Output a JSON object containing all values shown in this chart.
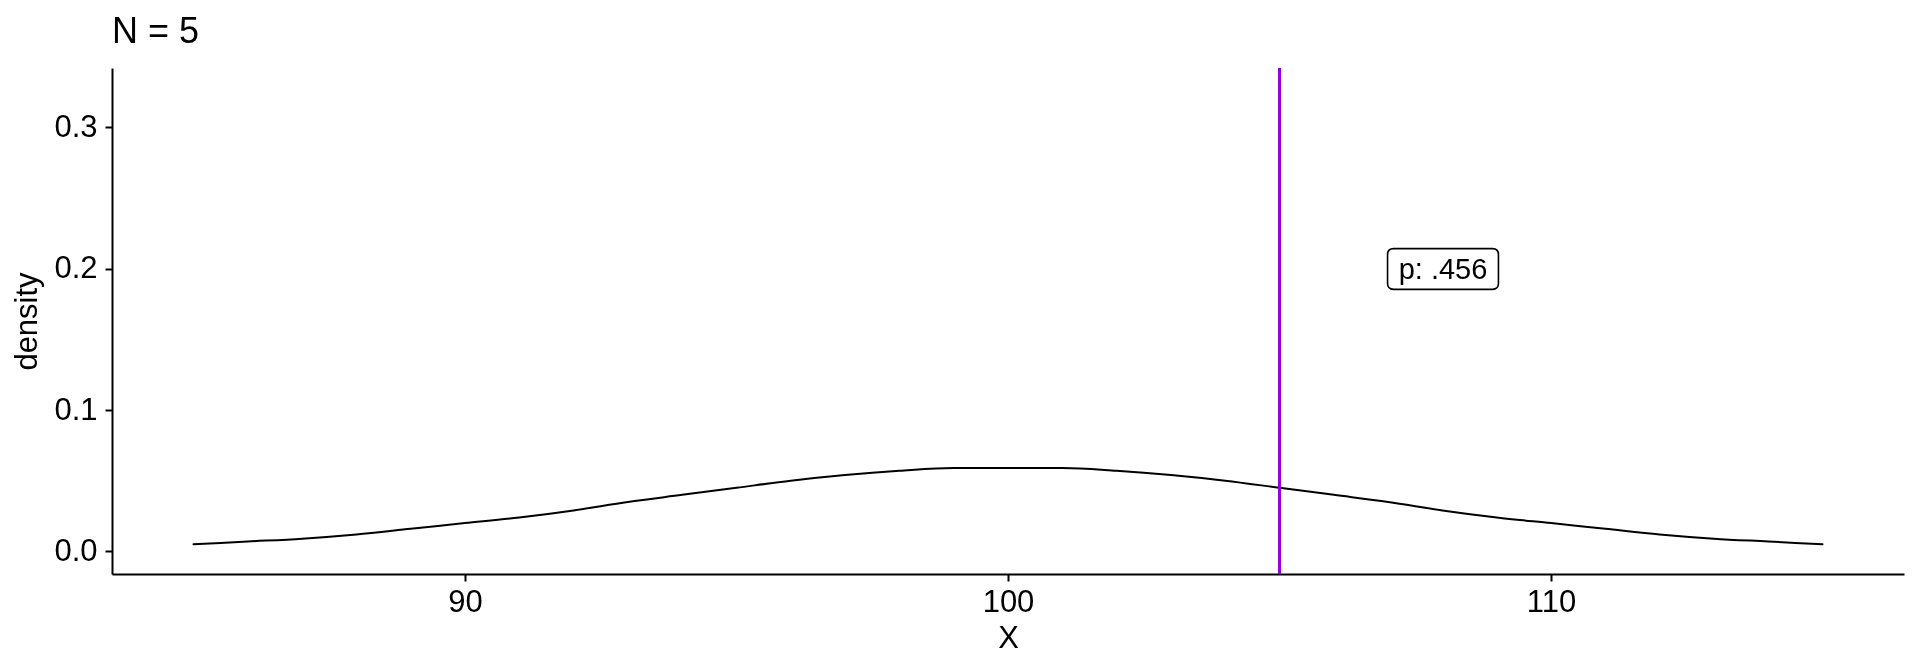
{
  "chart_data": {
    "type": "line",
    "title": "N = 5",
    "xlabel": "X",
    "ylabel": "density",
    "x": [
      85,
      86,
      87,
      88,
      89,
      90,
      91,
      92,
      93,
      94,
      95,
      96,
      97,
      98,
      99,
      100,
      101,
      102,
      103,
      104,
      105,
      106,
      107,
      108,
      109,
      110,
      111,
      112,
      113,
      114,
      115
    ],
    "series": [
      {
        "color": "#000000",
        "values": [
          0.005,
          0.007,
          0.009,
          0.012,
          0.016,
          0.02,
          0.024,
          0.029,
          0.035,
          0.04,
          0.045,
          0.05,
          0.054,
          0.057,
          0.059,
          0.059,
          0.059,
          0.057,
          0.054,
          0.05,
          0.045,
          0.04,
          0.035,
          0.029,
          0.024,
          0.02,
          0.016,
          0.012,
          0.009,
          0.007,
          0.005
        ]
      }
    ],
    "xlim": [
      83.5,
      116.5
    ],
    "ylim": [
      -0.016,
      0.342
    ],
    "xticks": [
      90,
      100,
      110
    ],
    "yticks": [
      {
        "value": 0,
        "label": "0.0"
      },
      0.1,
      0.2,
      0.3
    ],
    "ref_lines": [
      {
        "axis": "x",
        "value": 105,
        "color": "#9400e0"
      }
    ],
    "annotations": [
      "p: .456"
    ],
    "grid": false,
    "marker": "none",
    "line_style": "solid"
  }
}
